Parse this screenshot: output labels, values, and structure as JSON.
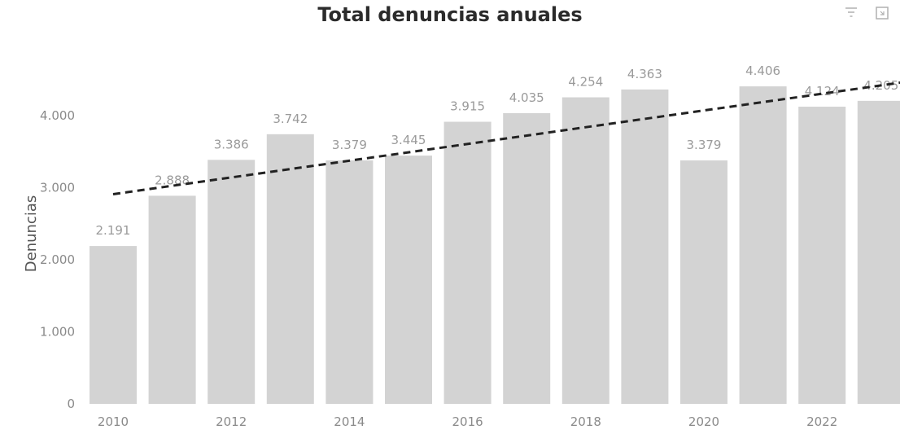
{
  "header": {
    "title": "Total denuncias anuales",
    "icons": [
      "filter-icon",
      "focus-mode-icon"
    ]
  },
  "colors": {
    "bar": "#d3d3d3",
    "trendline": "#222222",
    "title": "#2b2b2b",
    "axis_text": "#8a8a8a"
  },
  "chart_data": {
    "type": "bar",
    "title": "Total denuncias anuales",
    "xlabel": "",
    "ylabel": "Denuncias",
    "x": [
      2010,
      2011,
      2012,
      2013,
      2014,
      2015,
      2016,
      2017,
      2018,
      2019,
      2020,
      2021,
      2022,
      2023
    ],
    "values": [
      2191,
      2888,
      3386,
      3742,
      3379,
      3445,
      3915,
      4035,
      4254,
      4363,
      3379,
      4406,
      4124,
      4205
    ],
    "data_labels": [
      "2.191",
      "2.888",
      "3.386",
      "3.742",
      "3.379",
      "3.445",
      "3.915",
      "4.035",
      "4.254",
      "4.363",
      "3.379",
      "4.406",
      "4.124",
      "4.205"
    ],
    "x_tick_labels": [
      "2010",
      "2012",
      "2014",
      "2016",
      "2018",
      "2020",
      "2022"
    ],
    "y_tick_values": [
      0,
      1000,
      2000,
      3000,
      4000
    ],
    "y_tick_labels": [
      "0",
      "1.000",
      "2.000",
      "3.000",
      "4.000"
    ],
    "ylim": [
      0,
      4700
    ],
    "trendline": {
      "style": "dashed",
      "start": 2910,
      "end": 4460
    },
    "grid": false,
    "legend": "none"
  }
}
